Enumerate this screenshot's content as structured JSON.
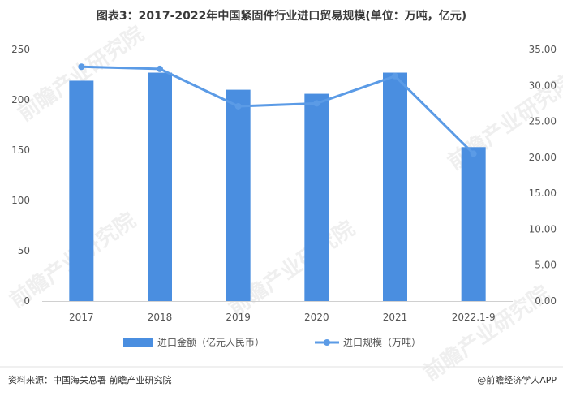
{
  "chart_data": {
    "type": "bar",
    "title": "图表3：2017-2022年中国紧固件行业进口贸易规模(单位：万吨，亿元)",
    "categories": [
      "2017",
      "2018",
      "2019",
      "2020",
      "2021",
      "2022.1-9"
    ],
    "series": [
      {
        "name": "进口金额（亿元人民币）",
        "type": "bar",
        "axis": "left",
        "color": "#4a8ee0",
        "values": [
          219,
          227,
          210,
          206,
          227,
          153
        ]
      },
      {
        "name": "进口规模（万吨）",
        "type": "line",
        "axis": "right",
        "color": "#5b9be6",
        "values": [
          32.6,
          32.3,
          27.1,
          27.5,
          31.3,
          20.5
        ]
      }
    ],
    "y_left": {
      "min": 0,
      "max": 250,
      "step": 50,
      "ticks": [
        "0",
        "50",
        "100",
        "150",
        "200",
        "250"
      ]
    },
    "y_right": {
      "min": 0,
      "max": 35,
      "step": 5,
      "ticks": [
        "0.00",
        "5.00",
        "10.00",
        "15.00",
        "20.00",
        "25.00",
        "30.00",
        "35.00"
      ]
    },
    "grid": false,
    "legend_position": "bottom"
  },
  "footer": {
    "source": "资料来源：中国海关总署 前瞻产业研究院",
    "brand": "@前瞻经济学人APP"
  },
  "watermark": "前瞻产业研究院"
}
